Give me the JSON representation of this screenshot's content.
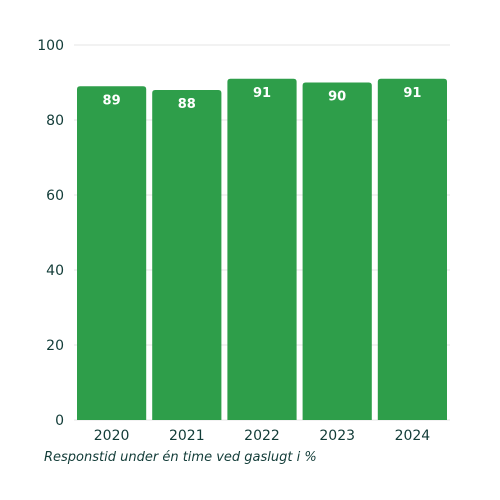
{
  "chart_data": {
    "type": "bar",
    "categories": [
      "2020",
      "2021",
      "2022",
      "2023",
      "2024"
    ],
    "values": [
      89,
      88,
      91,
      90,
      91
    ],
    "title": "",
    "xlabel": "Responstid under én time ved gaslugt i %",
    "ylabel": "",
    "ylim": [
      0,
      100
    ],
    "yticks": [
      0,
      20,
      40,
      60,
      80,
      100
    ],
    "grid": true,
    "data_labels": true,
    "bar_color": "#2e9e4a",
    "grid_color": "#e6e6e6",
    "text_color": "#123c38",
    "label_color": "#ffffff"
  }
}
